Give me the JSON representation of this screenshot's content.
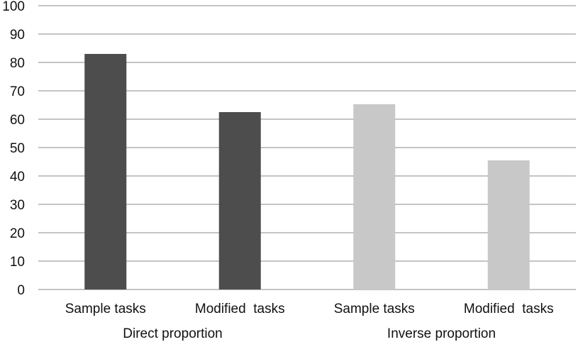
{
  "chart_data": {
    "type": "bar",
    "title": "",
    "xlabel": "",
    "ylabel": "",
    "ylim": [
      0,
      100
    ],
    "yticks": [
      0,
      10,
      20,
      30,
      40,
      50,
      60,
      70,
      80,
      90,
      100
    ],
    "grid": true,
    "legend": "none",
    "bars": [
      {
        "category": "Sample tasks",
        "group": "Direct proportion",
        "value": 83,
        "color": "#4d4d4d"
      },
      {
        "category": "Modified  tasks",
        "group": "Direct proportion",
        "value": 62.5,
        "color": "#4d4d4d"
      },
      {
        "category": "Sample tasks",
        "group": "Inverse proportion",
        "value": 65.3,
        "color": "#c8c8c8"
      },
      {
        "category": "Modified  tasks",
        "group": "Inverse proportion",
        "value": 45.5,
        "color": "#c8c8c8"
      }
    ],
    "groups": [
      "Direct proportion",
      "Inverse proportion"
    ]
  }
}
